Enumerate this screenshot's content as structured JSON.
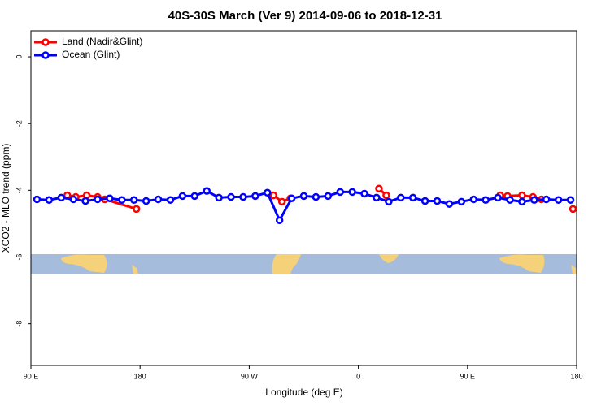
{
  "chart_data": {
    "type": "line",
    "title": "40S-30S March (Ver 9)   2014-09-06 to 2018-12-31",
    "xlabel": "Longitude (deg E)",
    "ylabel": "XCO2 - MLO trend (ppm)",
    "xlim": [
      90,
      540
    ],
    "ylim": [
      -9.25,
      0.78
    ],
    "xticks": [
      {
        "value": 90,
        "label": "90 E"
      },
      {
        "value": 180,
        "label": "180"
      },
      {
        "value": 270,
        "label": "90 W"
      },
      {
        "value": 360,
        "label": "0"
      },
      {
        "value": 450,
        "label": "90 E"
      },
      {
        "value": 540,
        "label": "180"
      }
    ],
    "yticks": [
      0,
      -2,
      -4,
      -6,
      -8
    ],
    "legend": "top-left",
    "series": [
      {
        "name": "Land (Nadir&Glint)",
        "color": "#ff0000",
        "x": [
          120,
          127,
          136,
          145,
          151,
          177,
          200,
          290,
          297,
          304,
          350,
          377,
          383,
          420,
          477,
          483,
          495,
          504,
          511,
          525,
          537
        ],
        "values": [
          -4.15,
          -4.2,
          -4.15,
          -4.2,
          -4.27,
          -4.56,
          null,
          -4.15,
          -4.34,
          -4.24,
          null,
          -3.95,
          -4.15,
          null,
          -4.15,
          -4.17,
          -4.15,
          -4.2,
          -4.27,
          null,
          -4.56
        ]
      },
      {
        "name": "Ocean (Glint)",
        "color": "#0000ff",
        "x": [
          95,
          105,
          115,
          125,
          135,
          145,
          155,
          165,
          175,
          185,
          195,
          205,
          215,
          225,
          235,
          245,
          255,
          265,
          275,
          285,
          295,
          305,
          315,
          325,
          335,
          345,
          355,
          365,
          375,
          385,
          395,
          405,
          415,
          425,
          435,
          445,
          455,
          465,
          475,
          485,
          495,
          505,
          515,
          525,
          535
        ],
        "values": [
          -4.27,
          -4.29,
          -4.22,
          -4.27,
          -4.32,
          -4.27,
          -4.24,
          -4.29,
          -4.29,
          -4.32,
          -4.27,
          -4.29,
          -4.17,
          -4.17,
          -4.02,
          -4.22,
          -4.2,
          -4.2,
          -4.17,
          -4.07,
          -4.9,
          -4.24,
          -4.17,
          -4.2,
          -4.17,
          -4.05,
          -4.05,
          -4.1,
          -4.22,
          -4.34,
          -4.22,
          -4.22,
          -4.32,
          -4.32,
          -4.41,
          -4.34,
          -4.27,
          -4.29,
          -4.22,
          -4.29,
          -4.34,
          -4.29,
          -4.27,
          -4.29,
          -4.29
        ]
      }
    ]
  }
}
